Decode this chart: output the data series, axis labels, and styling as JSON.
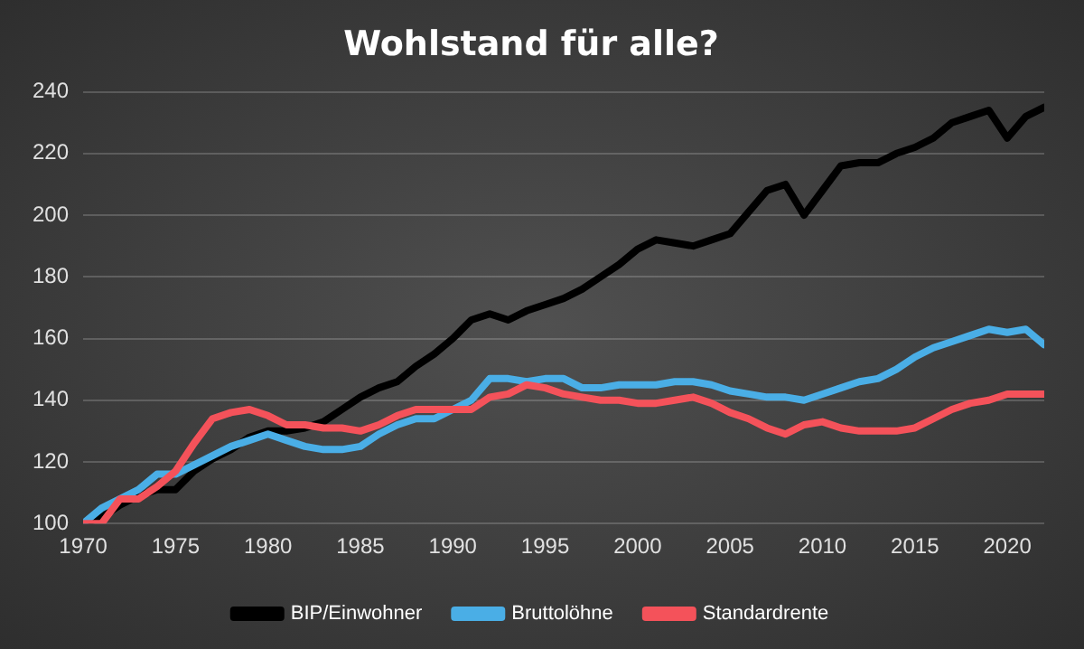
{
  "chart_data": {
    "type": "line",
    "title": "Wohlstand für alle?",
    "x": [
      1970,
      1971,
      1972,
      1973,
      1974,
      1975,
      1976,
      1977,
      1978,
      1979,
      1980,
      1981,
      1982,
      1983,
      1984,
      1985,
      1986,
      1987,
      1988,
      1989,
      1990,
      1991,
      1992,
      1993,
      1994,
      1995,
      1996,
      1997,
      1998,
      1999,
      2000,
      2001,
      2002,
      2003,
      2004,
      2005,
      2006,
      2007,
      2008,
      2009,
      2010,
      2011,
      2012,
      2013,
      2014,
      2015,
      2016,
      2017,
      2018,
      2019,
      2020,
      2021,
      2022
    ],
    "series": [
      {
        "name": "BIP/Einwohner",
        "color": "#000000",
        "values": [
          100,
          102,
          106,
          109,
          111,
          111,
          117,
          121,
          124,
          128,
          130,
          130,
          131,
          133,
          137,
          141,
          144,
          146,
          151,
          155,
          160,
          166,
          168,
          166,
          169,
          171,
          173,
          176,
          180,
          184,
          189,
          192,
          191,
          190,
          192,
          194,
          201,
          208,
          210,
          200,
          208,
          216,
          217,
          217,
          220,
          222,
          225,
          230,
          232,
          234,
          225,
          232,
          235
        ]
      },
      {
        "name": "Bruttolöhne",
        "color": "#4aaee6",
        "values": [
          100,
          105,
          108,
          111,
          116,
          116,
          119,
          122,
          125,
          127,
          129,
          127,
          125,
          124,
          124,
          125,
          129,
          132,
          134,
          134,
          137,
          140,
          147,
          147,
          146,
          147,
          147,
          144,
          144,
          145,
          145,
          145,
          146,
          146,
          145,
          143,
          142,
          141,
          141,
          140,
          142,
          144,
          146,
          147,
          150,
          154,
          157,
          159,
          161,
          163,
          162,
          163,
          158
        ]
      },
      {
        "name": "Standardrente",
        "color": "#f4525a",
        "values": [
          100,
          100,
          108,
          108,
          112,
          117,
          126,
          134,
          136,
          137,
          135,
          132,
          132,
          131,
          131,
          130,
          132,
          135,
          137,
          137,
          137,
          137,
          141,
          142,
          145,
          144,
          142,
          141,
          140,
          140,
          139,
          139,
          140,
          141,
          139,
          136,
          134,
          131,
          129,
          132,
          133,
          131,
          130,
          130,
          130,
          131,
          134,
          137,
          139,
          140,
          142,
          142,
          142
        ]
      }
    ],
    "xlim": [
      1970,
      2022
    ],
    "xticks": [
      1970,
      1975,
      1980,
      1985,
      1990,
      1995,
      2000,
      2005,
      2010,
      2015,
      2020
    ],
    "ylim": [
      100,
      240
    ],
    "yticks": [
      100,
      120,
      140,
      160,
      180,
      200,
      220,
      240
    ],
    "grid": "y",
    "legend": "bottom",
    "marker": "none",
    "line_style": "solid"
  }
}
